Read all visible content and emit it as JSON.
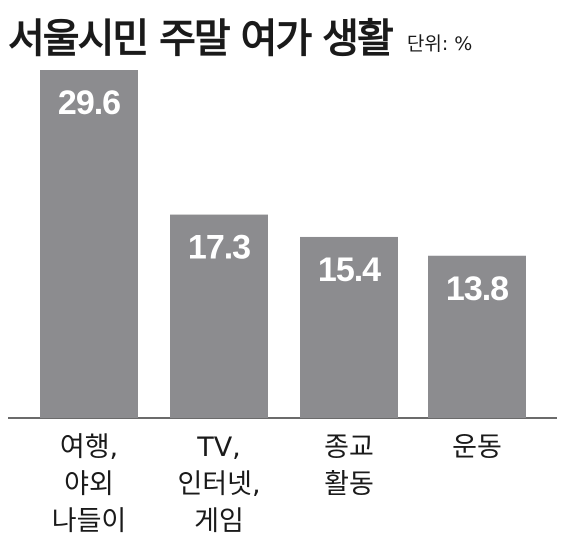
{
  "chart_data": {
    "type": "bar",
    "title": "서울시민 주말 여가 생활",
    "unit_label": "단위: %",
    "categories": [
      [
        "여행,",
        "야외",
        "나들이"
      ],
      [
        "TV,",
        "인터넷,",
        "게임"
      ],
      [
        "종교",
        "활동"
      ],
      [
        "운동"
      ]
    ],
    "values": [
      29.6,
      17.3,
      15.4,
      13.8
    ],
    "value_labels": [
      "29.6",
      "17.3",
      "15.4",
      "13.8"
    ],
    "xlabel": "",
    "ylabel": "",
    "ylim": [
      0,
      29.6
    ],
    "grid": false,
    "legend": "none",
    "colors": {
      "bar": "#8c8c8f",
      "baseline": "#3a3a3a",
      "text": "#1a1a1a",
      "value_text": "#ffffff"
    }
  }
}
